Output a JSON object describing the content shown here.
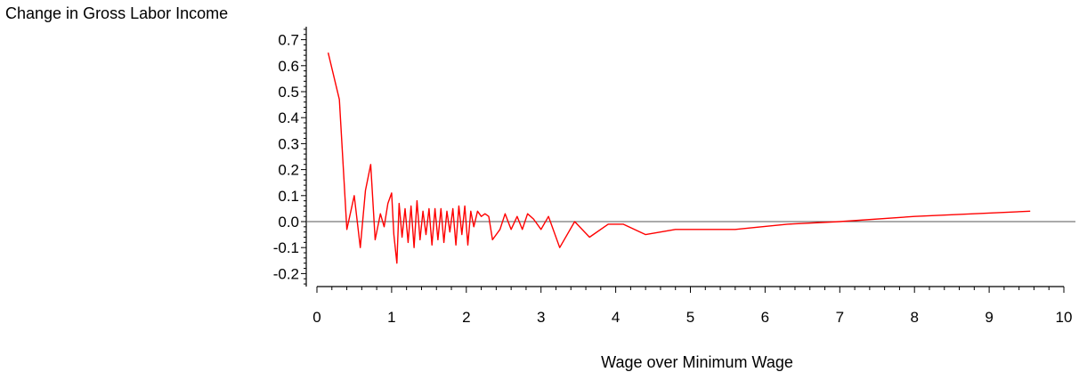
{
  "chart_data": {
    "type": "line",
    "title": "",
    "ylabel": "Change in Gross Labor Income",
    "xlabel": "Wage over Minimum Wage",
    "xlim": [
      0,
      10
    ],
    "ylim": [
      -0.25,
      0.75
    ],
    "x_ticks": [
      "0",
      "1",
      "2",
      "3",
      "4",
      "5",
      "6",
      "7",
      "8",
      "9",
      "10"
    ],
    "y_ticks": [
      "0.7",
      "0.6",
      "0.5",
      "0.4",
      "0.3",
      "0.2",
      "0.1",
      "0.0",
      "-0.1",
      "-0.2"
    ],
    "reference_line_y": 0,
    "grid": false,
    "series": [
      {
        "color": "#ff0000",
        "points": [
          [
            0.15,
            0.65
          ],
          [
            0.3,
            0.47
          ],
          [
            0.4,
            -0.03
          ],
          [
            0.5,
            0.1
          ],
          [
            0.58,
            -0.1
          ],
          [
            0.65,
            0.12
          ],
          [
            0.72,
            0.22
          ],
          [
            0.78,
            -0.07
          ],
          [
            0.85,
            0.03
          ],
          [
            0.9,
            -0.02
          ],
          [
            0.95,
            0.07
          ],
          [
            1.0,
            0.11
          ],
          [
            1.03,
            -0.05
          ],
          [
            1.07,
            -0.16
          ],
          [
            1.1,
            0.07
          ],
          [
            1.14,
            -0.06
          ],
          [
            1.18,
            0.05
          ],
          [
            1.22,
            -0.08
          ],
          [
            1.26,
            0.06
          ],
          [
            1.3,
            -0.1
          ],
          [
            1.34,
            0.08
          ],
          [
            1.38,
            -0.07
          ],
          [
            1.42,
            0.04
          ],
          [
            1.46,
            -0.05
          ],
          [
            1.5,
            0.05
          ],
          [
            1.54,
            -0.09
          ],
          [
            1.58,
            0.05
          ],
          [
            1.62,
            -0.07
          ],
          [
            1.66,
            0.05
          ],
          [
            1.7,
            -0.08
          ],
          [
            1.74,
            0.04
          ],
          [
            1.78,
            -0.04
          ],
          [
            1.82,
            0.05
          ],
          [
            1.86,
            -0.09
          ],
          [
            1.9,
            0.06
          ],
          [
            1.94,
            -0.05
          ],
          [
            1.98,
            0.06
          ],
          [
            2.02,
            -0.09
          ],
          [
            2.06,
            0.04
          ],
          [
            2.1,
            -0.02
          ],
          [
            2.15,
            0.04
          ],
          [
            2.2,
            0.02
          ],
          [
            2.25,
            0.03
          ],
          [
            2.3,
            0.02
          ],
          [
            2.35,
            -0.07
          ],
          [
            2.45,
            -0.03
          ],
          [
            2.52,
            0.03
          ],
          [
            2.6,
            -0.03
          ],
          [
            2.68,
            0.02
          ],
          [
            2.75,
            -0.03
          ],
          [
            2.82,
            0.03
          ],
          [
            2.9,
            0.01
          ],
          [
            3.0,
            -0.03
          ],
          [
            3.1,
            0.02
          ],
          [
            3.25,
            -0.1
          ],
          [
            3.45,
            0.0
          ],
          [
            3.65,
            -0.06
          ],
          [
            3.9,
            -0.01
          ],
          [
            4.1,
            -0.01
          ],
          [
            4.4,
            -0.05
          ],
          [
            4.8,
            -0.03
          ],
          [
            5.6,
            -0.03
          ],
          [
            6.3,
            -0.01
          ],
          [
            7.0,
            0.0
          ],
          [
            8.0,
            0.02
          ],
          [
            9.55,
            0.04
          ]
        ]
      }
    ]
  }
}
